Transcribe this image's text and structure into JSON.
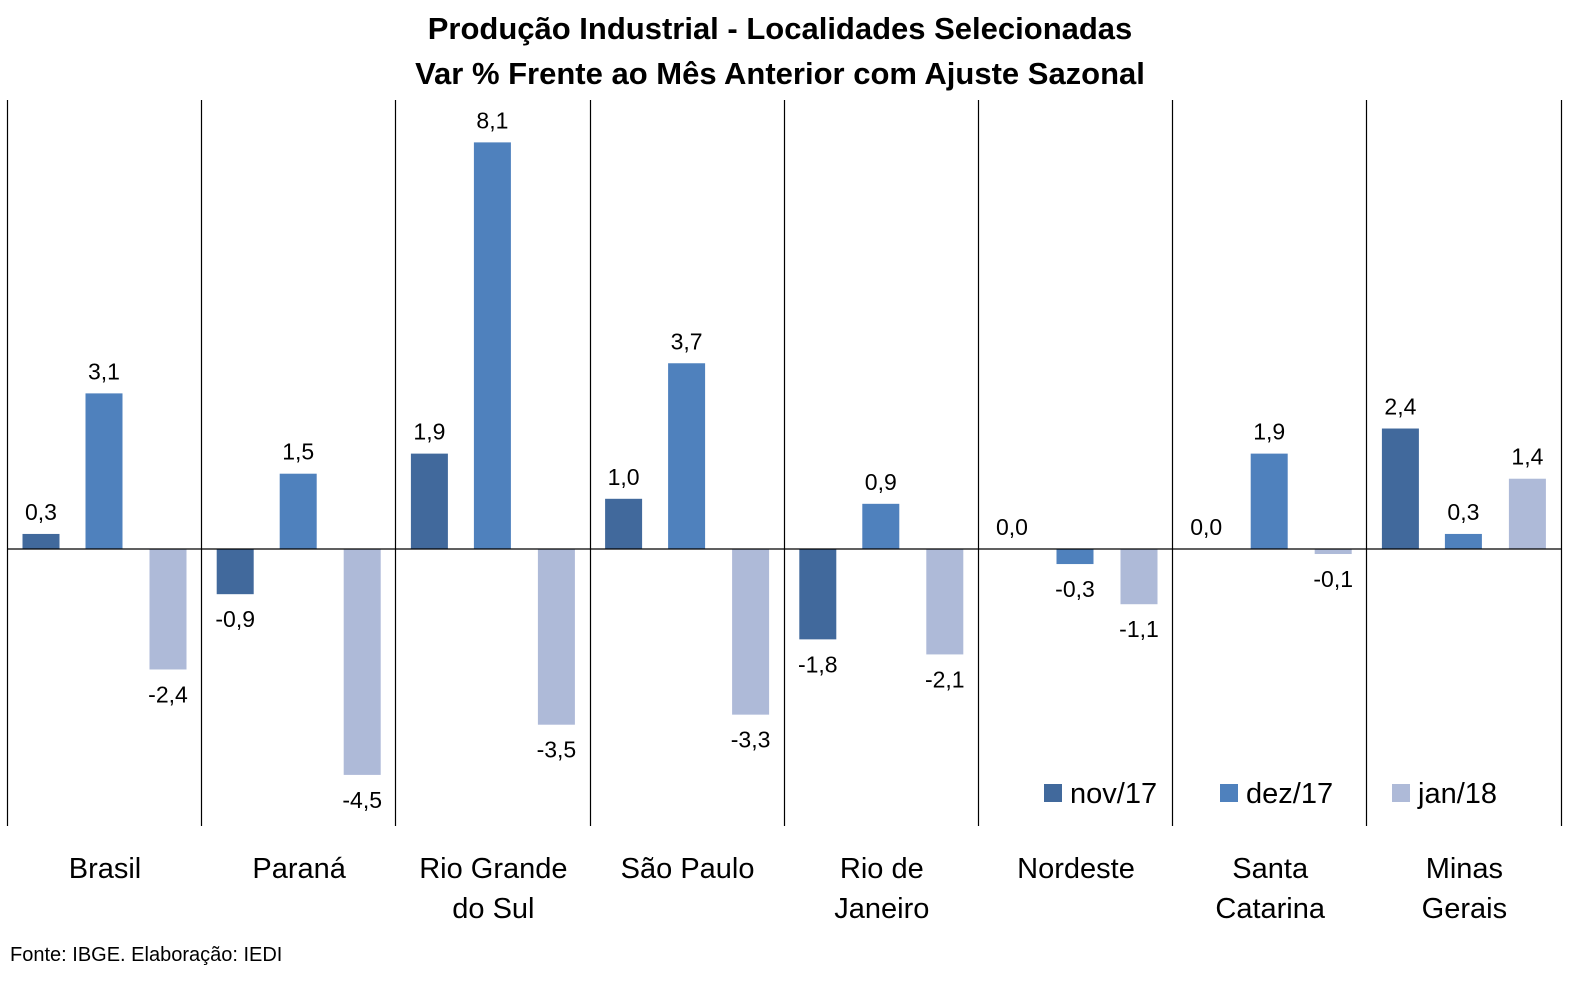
{
  "chart_data": {
    "type": "bar",
    "title": "Produção Industrial - Localidades Selecionadas",
    "subtitle": "Var % Frente ao Mês Anterior com Ajuste Sazonal",
    "categories": [
      "Brasil",
      "Paraná",
      "Rio Grande do Sul",
      "São Paulo",
      "Rio de Janeiro",
      "Nordeste",
      "Santa Catarina",
      "Minas Gerais"
    ],
    "category_lines": [
      [
        "Brasil"
      ],
      [
        "Paraná"
      ],
      [
        "Rio Grande",
        "do Sul"
      ],
      [
        "São Paulo"
      ],
      [
        "Rio de",
        "Janeiro"
      ],
      [
        "Nordeste"
      ],
      [
        "Santa",
        "Catarina"
      ],
      [
        "Minas",
        "Gerais"
      ]
    ],
    "series": [
      {
        "name": "nov/17",
        "color": "#41699c",
        "values": [
          0.3,
          -0.9,
          1.9,
          1.0,
          -1.8,
          0.0,
          0.0,
          2.4
        ],
        "labels": [
          "0,3",
          "-0,9",
          "1,9",
          "1,0",
          "-1,8",
          "0,0",
          "0,0",
          "2,4"
        ]
      },
      {
        "name": "dez/17",
        "color": "#4f81bd",
        "values": [
          3.1,
          1.5,
          8.1,
          3.7,
          0.9,
          -0.3,
          1.9,
          0.3
        ],
        "labels": [
          "3,1",
          "1,5",
          "8,1",
          "3,7",
          "0,9",
          "-0,3",
          "1,9",
          "0,3"
        ]
      },
      {
        "name": "jan/18",
        "color": "#aebad8",
        "values": [
          -2.4,
          -4.5,
          -3.5,
          -3.3,
          -2.1,
          -1.1,
          -0.1,
          1.4
        ],
        "labels": [
          "-2,4",
          "-4,5",
          "-3,5",
          "-3,3",
          "-2,1",
          "-1,1",
          "-0,1",
          "1,4"
        ]
      }
    ],
    "ylim": [
      -5.5,
      9.0
    ],
    "legend_position": "bottom-right",
    "grid": false,
    "source": "Fonte: IBGE. Elaboração: IEDI"
  }
}
